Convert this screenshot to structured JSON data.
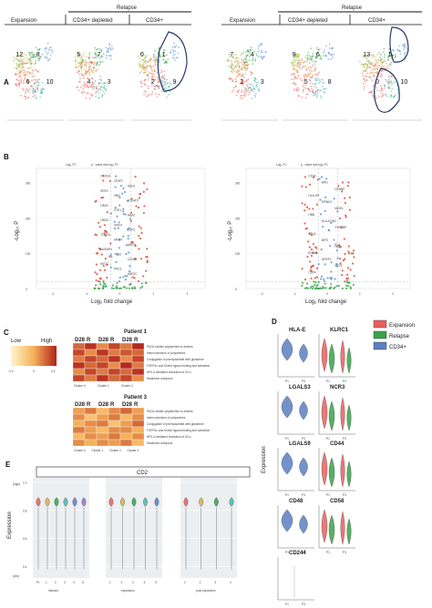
{
  "panels": {
    "a": "A",
    "b": "B",
    "c": "C",
    "d": "D",
    "e": "E"
  },
  "umap": {
    "relapse_label": "Relapse",
    "labels": [
      "Expansion",
      "CD34+ depleted",
      "CD34+"
    ],
    "left_clusters": [
      "12",
      "6",
      "8",
      "10",
      "5",
      "4",
      "7",
      "3",
      "0",
      "2",
      "1",
      "9",
      "3",
      "11",
      "8",
      "5",
      "10"
    ],
    "right_clusters": [
      "7",
      "2",
      "4",
      "3",
      "9",
      "5",
      "6",
      "8",
      "13",
      "0",
      "1",
      "10",
      "14",
      "12",
      "11",
      "11"
    ]
  },
  "volcano": {
    "legend_a": "Log₂ FC",
    "legend_b": "p - value and log₂ FC",
    "ylabel": "-Log₁₀ P",
    "xlabel": "Log₂ fold change",
    "yticks": [
      "0",
      "100",
      "200",
      "300"
    ],
    "xticks": [
      "-2",
      "-1",
      "0",
      "1",
      "2"
    ],
    "left_genes": [
      "CKS1B",
      "CRIP2",
      "HBG1",
      "SRF3",
      "HBD",
      "STEAP2",
      "HBG2",
      "STK1",
      "HBA2",
      "HBG2",
      "SMC4",
      "CDK1",
      "TOP2A",
      "MKI67",
      "ASPM",
      "NUSAP1",
      "TPX2",
      "CCNB1",
      "KIF2C",
      "PRC1",
      "UBE2C"
    ],
    "right_genes": [
      "CD34",
      "ERG",
      "CRHBP",
      "HLA-DR",
      "SPINK2",
      "MEIS1",
      "HBB",
      "HLA-DQB1",
      "TYROBP",
      "AZU1",
      "MPO",
      "HBA1",
      "ELANE",
      "GREF1",
      "CD74",
      "CSTA"
    ]
  },
  "heatmap": {
    "legend_low": "Low",
    "legend_high": "High",
    "scale_min": "-0.4",
    "scale_mid": "0",
    "scale_max": "0.4",
    "patient1": {
      "title": "Patient 1",
      "cols": [
        "D28",
        "R",
        "D28",
        "R",
        "D28",
        "R"
      ],
      "clusters": [
        "Cluster 0",
        "Cluster 1",
        "Cluster 2"
      ],
      "rows": [
        "PAOs oxidise polyamines to amines",
        "Interconversion of polyamines",
        "Conjugation of phenylacetate with glutamine",
        "FGFR1c and Klotho ligand binding and activation",
        "NFIL3-mediated resolution of ICLs",
        "Histamine receptors"
      ],
      "values": [
        [
          0.2,
          0.35,
          0.1,
          0.3,
          0.15,
          0.38
        ],
        [
          0.3,
          0.1,
          0.35,
          0.15,
          0.25,
          0.2
        ],
        [
          0.15,
          0.3,
          0.2,
          0.35,
          0.1,
          0.3
        ],
        [
          0.35,
          0.2,
          0.3,
          0.1,
          0.38,
          0.15
        ],
        [
          0.1,
          0.3,
          0.15,
          0.3,
          0.2,
          0.35
        ],
        [
          0.3,
          0.15,
          0.35,
          0.2,
          0.3,
          0.1
        ]
      ]
    },
    "patient3": {
      "title": "Patient 3",
      "cols": [
        "D28",
        "R",
        "D28",
        "R",
        "D28",
        "R"
      ],
      "clusters": [
        "Cluster 0",
        "Cluster 1",
        "Cluster 2",
        "Cluster 3"
      ],
      "rows": [
        "PAOs oxidise polyamines to amines",
        "Interconversion of polyamines",
        "Conjugation of phenylacetate with glutamine",
        "FGFR1c and Klotho ligand binding and activation",
        "NFIL3-mediated resolution of ICLs",
        "Histamine receptors"
      ],
      "values": [
        [
          0.05,
          0.15,
          -0.05,
          0.1,
          0.2,
          0.05
        ],
        [
          0.1,
          -0.1,
          0.05,
          0.15,
          -0.05,
          0.1
        ],
        [
          0.0,
          0.1,
          0.15,
          -0.1,
          0.05,
          0.2
        ],
        [
          0.15,
          0.05,
          -0.05,
          0.1,
          0.1,
          0.0
        ],
        [
          -0.05,
          0.1,
          0.05,
          0.15,
          0.0,
          0.1
        ],
        [
          0.1,
          0.0,
          0.1,
          0.05,
          0.15,
          -0.05
        ]
      ]
    },
    "colors": {
      "low": "#fff6c8",
      "mid": "#f5b15a",
      "high": "#b3211a"
    }
  },
  "violins_d": {
    "legend": [
      {
        "label": "Expansion",
        "color": "#e8605c"
      },
      {
        "label": "Relapse",
        "color": "#3aa24a"
      },
      {
        "label": "CD34+",
        "color": "#5b7fc2"
      }
    ],
    "ylabel": "Expression",
    "genes": [
      "HLA-E",
      "KLRC1",
      "LGALS3",
      "NCR3",
      "LGALS9",
      "CD44",
      "CD48",
      "CD58",
      "CD244"
    ],
    "xlabels": [
      "P1",
      "P3"
    ]
  },
  "violins_e": {
    "title": "CD2",
    "ylabel": "Expression",
    "y_high": "(high)",
    "y_low": "(low)",
    "yticks": [
      "1.0",
      "0.8",
      "0.6",
      "0.4"
    ],
    "groups": [
      {
        "name": "infusion",
        "ticks": [
          "Pt",
          "1",
          "2",
          "3",
          "4",
          "5"
        ]
      },
      {
        "name": "expansion",
        "ticks": [
          "1",
          "2",
          "3",
          "4",
          "5"
        ]
      },
      {
        "name": "post-expansion",
        "ticks": [
          "1",
          "2",
          "3",
          "4"
        ]
      }
    ]
  }
}
